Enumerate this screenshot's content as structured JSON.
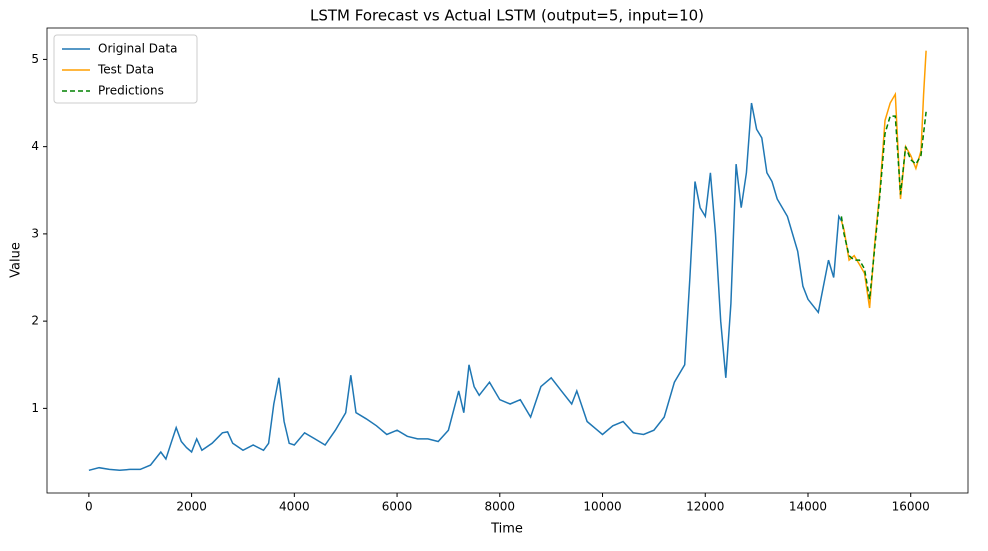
{
  "chart_data": {
    "type": "line",
    "title": "LSTM Forecast vs Actual LSTM (output=5, input=10)",
    "x_label": "Time",
    "y_label": "Value",
    "legend": "upper left",
    "xlim": [
      -815,
      17115
    ],
    "ylim": [
      0.03,
      5.36
    ],
    "xticks": [
      0,
      2000,
      4000,
      6000,
      8000,
      10000,
      12000,
      14000,
      16000
    ],
    "yticks": [
      1,
      2,
      3,
      4,
      5
    ],
    "series": [
      {
        "name": "Original Data",
        "color": "#1f77b4",
        "dash": "solid",
        "x": [
          0,
          200,
          400,
          600,
          800,
          1000,
          1200,
          1400,
          1500,
          1600,
          1700,
          1800,
          1900,
          2000,
          2100,
          2200,
          2400,
          2600,
          2700,
          2800,
          3000,
          3200,
          3400,
          3500,
          3600,
          3700,
          3800,
          3900,
          4000,
          4200,
          4400,
          4600,
          4800,
          5000,
          5100,
          5200,
          5400,
          5600,
          5800,
          6000,
          6200,
          6400,
          6600,
          6800,
          7000,
          7200,
          7300,
          7400,
          7500,
          7600,
          7800,
          8000,
          8200,
          8400,
          8600,
          8800,
          9000,
          9200,
          9400,
          9500,
          9700,
          9900,
          10000,
          10200,
          10400,
          10600,
          10800,
          11000,
          11200,
          11400,
          11600,
          11700,
          11800,
          11900,
          12000,
          12100,
          12200,
          12300,
          12400,
          12500,
          12600,
          12700,
          12800,
          12900,
          13000,
          13100,
          13200,
          13300,
          13400,
          13600,
          13800,
          13900,
          14000,
          14200,
          14400,
          14500,
          14600,
          14650
        ],
        "values": [
          0.29,
          0.32,
          0.3,
          0.29,
          0.3,
          0.3,
          0.35,
          0.5,
          0.42,
          0.6,
          0.78,
          0.62,
          0.55,
          0.5,
          0.65,
          0.52,
          0.6,
          0.72,
          0.73,
          0.6,
          0.52,
          0.58,
          0.52,
          0.6,
          1.05,
          1.35,
          0.85,
          0.6,
          0.58,
          0.72,
          0.65,
          0.58,
          0.75,
          0.95,
          1.38,
          0.95,
          0.88,
          0.8,
          0.7,
          0.75,
          0.68,
          0.65,
          0.65,
          0.62,
          0.75,
          1.2,
          0.95,
          1.5,
          1.25,
          1.15,
          1.3,
          1.1,
          1.05,
          1.1,
          0.9,
          1.25,
          1.35,
          1.2,
          1.05,
          1.2,
          0.85,
          0.75,
          0.7,
          0.8,
          0.85,
          0.72,
          0.7,
          0.75,
          0.9,
          1.3,
          1.5,
          2.5,
          3.6,
          3.3,
          3.2,
          3.7,
          3.0,
          2.0,
          1.35,
          2.2,
          3.8,
          3.3,
          3.7,
          4.5,
          4.2,
          4.1,
          3.7,
          3.6,
          3.4,
          3.2,
          2.8,
          2.4,
          2.25,
          2.1,
          2.7,
          2.5,
          3.2,
          3.15
        ]
      },
      {
        "name": "Test Data",
        "color": "#ff9f00",
        "dash": "solid",
        "x": [
          14650,
          14700,
          14800,
          14900,
          15000,
          15100,
          15200,
          15300,
          15400,
          15500,
          15600,
          15700,
          15800,
          15900,
          16000,
          16100,
          16200,
          16250,
          16300
        ],
        "values": [
          3.15,
          3.05,
          2.7,
          2.75,
          2.65,
          2.55,
          2.15,
          2.9,
          3.5,
          4.3,
          4.5,
          4.6,
          3.4,
          4.0,
          3.9,
          3.75,
          3.95,
          4.6,
          5.1
        ]
      },
      {
        "name": "Predictions",
        "color": "#008000",
        "dash": "dashed",
        "x": [
          14650,
          14700,
          14800,
          14900,
          15000,
          15100,
          15200,
          15300,
          15400,
          15500,
          15600,
          15700,
          15800,
          15900,
          16000,
          16100,
          16200,
          16300
        ],
        "values": [
          3.2,
          3.0,
          2.75,
          2.7,
          2.7,
          2.6,
          2.25,
          2.85,
          3.45,
          4.15,
          4.35,
          4.35,
          3.45,
          4.0,
          3.85,
          3.8,
          3.9,
          4.4
        ]
      }
    ]
  }
}
